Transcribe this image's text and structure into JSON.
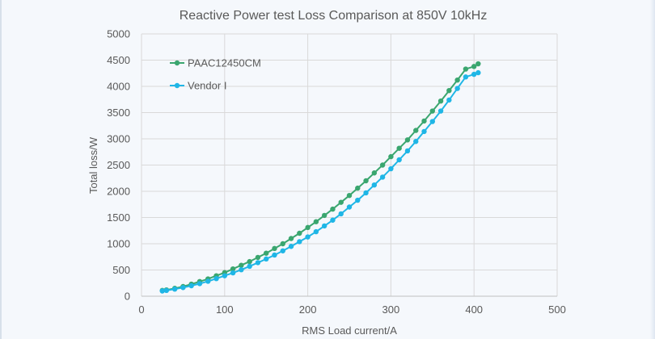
{
  "chart_data": {
    "type": "line",
    "title": "Reactive Power test Loss Comparison at 850V 10kHz",
    "xlabel": "RMS Load current/A",
    "ylabel": "Total loss/W",
    "xlim": [
      0,
      500
    ],
    "ylim": [
      0,
      5000
    ],
    "xticks": [
      0,
      100,
      200,
      300,
      400,
      500
    ],
    "yticks": [
      0,
      500,
      1000,
      1500,
      2000,
      2500,
      3000,
      3500,
      4000,
      4500,
      5000
    ],
    "grid": true,
    "legend_position": "top-left",
    "series": [
      {
        "name": "PAAC12450CM",
        "color": "#3aa66f",
        "x": [
          25,
          30,
          40,
          50,
          60,
          70,
          80,
          90,
          100,
          110,
          120,
          130,
          140,
          150,
          160,
          170,
          180,
          190,
          200,
          210,
          220,
          230,
          240,
          250,
          260,
          270,
          280,
          290,
          300,
          310,
          320,
          330,
          340,
          350,
          360,
          370,
          380,
          390,
          400,
          405
        ],
        "y": [
          110,
          120,
          150,
          185,
          230,
          280,
          330,
          390,
          450,
          520,
          590,
          660,
          740,
          820,
          910,
          1000,
          1100,
          1200,
          1310,
          1420,
          1540,
          1660,
          1790,
          1920,
          2060,
          2200,
          2350,
          2500,
          2660,
          2820,
          2980,
          3160,
          3340,
          3530,
          3720,
          3920,
          4120,
          4330,
          4380,
          4430
        ]
      },
      {
        "name": "Vendor I",
        "color": "#1fb6e6",
        "x": [
          25,
          30,
          40,
          50,
          60,
          70,
          80,
          90,
          100,
          110,
          120,
          130,
          140,
          150,
          160,
          170,
          180,
          190,
          200,
          210,
          220,
          230,
          240,
          250,
          260,
          270,
          280,
          290,
          300,
          310,
          320,
          330,
          340,
          350,
          360,
          370,
          380,
          390,
          400,
          405
        ],
        "y": [
          100,
          110,
          135,
          165,
          200,
          240,
          285,
          335,
          390,
          445,
          505,
          570,
          640,
          710,
          785,
          865,
          950,
          1040,
          1130,
          1230,
          1340,
          1450,
          1570,
          1700,
          1830,
          1970,
          2120,
          2270,
          2430,
          2600,
          2770,
          2950,
          3140,
          3330,
          3530,
          3740,
          3960,
          4180,
          4230,
          4260
        ]
      }
    ]
  }
}
